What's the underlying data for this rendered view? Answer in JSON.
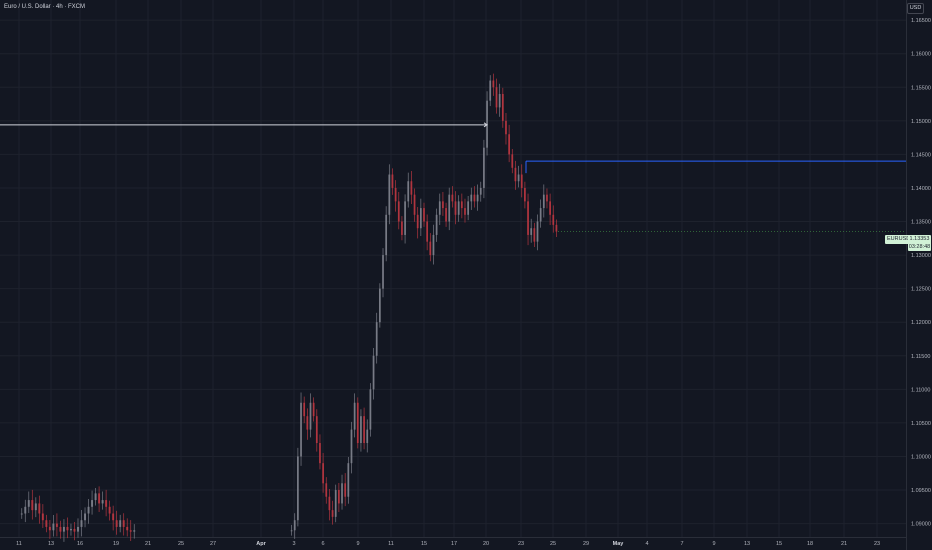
{
  "header": {
    "symbol_title": "Euro / U.S. Dollar · 4h · FXCM",
    "currency": "USD"
  },
  "price_tag": {
    "symbol": "EURUSD",
    "price": "1.13353",
    "countdown": "03:28:48"
  },
  "colors": {
    "background": "#131722",
    "grid": "#1e222d",
    "candle_up": "#787b86",
    "candle_down": "#b2353f",
    "white_ray": "#d1d4dc",
    "blue_line": "#2962ff",
    "price_tag_bg": "#d1f1d6"
  },
  "chart_data": {
    "type": "candlestick",
    "timeframe": "4h",
    "ylim": [
      1.088,
      1.168
    ],
    "y_ticks": [
      "1.16500",
      "1.16000",
      "1.15500",
      "1.15000",
      "1.14500",
      "1.14000",
      "1.13500",
      "1.13000",
      "1.12500",
      "1.12000",
      "1.11500",
      "1.11000",
      "1.10500",
      "1.10000",
      "1.09500",
      "1.09000"
    ],
    "x_ticks": [
      {
        "label": "11"
      },
      {
        "label": "13"
      },
      {
        "label": "16"
      },
      {
        "label": "19"
      },
      {
        "label": "21"
      },
      {
        "label": "25"
      },
      {
        "label": "27"
      },
      {
        "label": "Apr",
        "bold": true
      },
      {
        "label": "3"
      },
      {
        "label": "6"
      },
      {
        "label": "9"
      },
      {
        "label": "11"
      },
      {
        "label": "15"
      },
      {
        "label": "17"
      },
      {
        "label": "20"
      },
      {
        "label": "23"
      },
      {
        "label": "25"
      },
      {
        "label": "29"
      },
      {
        "label": "May",
        "bold": true
      },
      {
        "label": "4"
      },
      {
        "label": "7"
      },
      {
        "label": "9"
      },
      {
        "label": "13"
      },
      {
        "label": "15"
      },
      {
        "label": "18"
      },
      {
        "label": "21"
      },
      {
        "label": "23"
      }
    ],
    "segments": [
      {
        "start_date": "Mar 11",
        "closes": [
          1.0915,
          1.0925,
          1.0935,
          1.092,
          1.093,
          1.0915,
          1.0905,
          1.0895,
          1.089,
          1.09,
          1.0895,
          1.0888,
          1.0895,
          1.089,
          1.0892,
          1.0888,
          1.0895,
          1.0905,
          1.0915,
          1.0925,
          1.0935,
          1.0945,
          1.093,
          1.0935,
          1.0925,
          1.0915,
          1.0905,
          1.0895,
          1.0905,
          1.0895,
          1.089,
          1.0888,
          1.089
        ]
      },
      {
        "start_date": "Apr 2",
        "closes": [
          1.089,
          1.0905,
          1.1,
          1.108,
          1.106,
          1.104,
          1.108,
          1.106,
          1.102,
          1.099,
          1.096,
          1.094,
          1.092,
          1.091,
          1.095,
          1.093,
          1.096,
          1.094,
          1.099,
          1.104,
          1.108,
          1.102,
          1.106,
          1.102,
          1.104,
          1.11,
          1.115,
          1.12,
          1.125,
          1.13,
          1.136,
          1.142,
          1.14,
          1.138,
          1.135,
          1.133,
          1.138,
          1.141,
          1.139,
          1.136,
          1.134,
          1.137,
          1.135,
          1.132,
          1.13,
          1.133,
          1.136,
          1.138,
          1.137,
          1.135,
          1.139,
          1.138,
          1.136,
          1.138,
          1.137,
          1.136,
          1.138,
          1.139,
          1.138,
          1.139,
          1.14,
          1.146,
          1.153,
          1.156,
          1.155,
          1.152,
          1.154,
          1.15,
          1.148,
          1.145,
          1.143,
          1.141,
          1.142,
          1.14,
          1.138,
          1.133,
          1.134,
          1.132,
          1.135,
          1.137,
          1.139,
          1.138,
          1.136,
          1.1345,
          1.1335
        ]
      }
    ],
    "current_price": 1.13353,
    "white_ray": {
      "price": 1.1494,
      "from": "Mar 11",
      "to": "Apr 20"
    },
    "blue_line": {
      "price": 1.144,
      "from": "Apr 23"
    }
  }
}
